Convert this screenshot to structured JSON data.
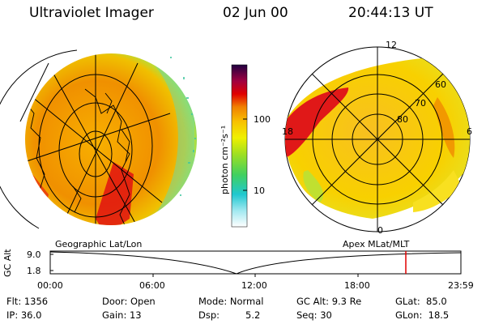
{
  "header": {
    "instrument": "Ultraviolet Imager",
    "date": "02 Jun 00",
    "time": "20:44:13 UT"
  },
  "colorbar": {
    "unit_label": "photon cm⁻²s⁻¹",
    "tick_labels": [
      "100",
      "10"
    ]
  },
  "left_map": {
    "label": "Geographic Lat/Lon"
  },
  "right_map": {
    "label": "Apex MLat/MLT",
    "mlt_labels": [
      "12",
      "18",
      "6",
      "0"
    ],
    "lat_labels": [
      "60",
      "70",
      "80"
    ]
  },
  "altitude_plot": {
    "axis_label": "GC Alt",
    "y_ticks": [
      "9.0",
      "1.8"
    ],
    "x_ticks": [
      "00:00",
      "06:00",
      "12:00",
      "18:00",
      "23:59"
    ],
    "marker_color": "#e00000"
  },
  "info": {
    "flt": "Flt: 1356",
    "ip": "IP: 36.0",
    "door": "Door: Open",
    "gain": "Gain: 13",
    "mode": "Mode: Normal",
    "dsp_label": "Dsp:",
    "dsp_value": "5.2",
    "gc_alt": "GC Alt: 9.3 Re",
    "seq": "Seq: 30",
    "glat": "GLat:  85.0",
    "glon": "GLon:  18.5"
  }
}
